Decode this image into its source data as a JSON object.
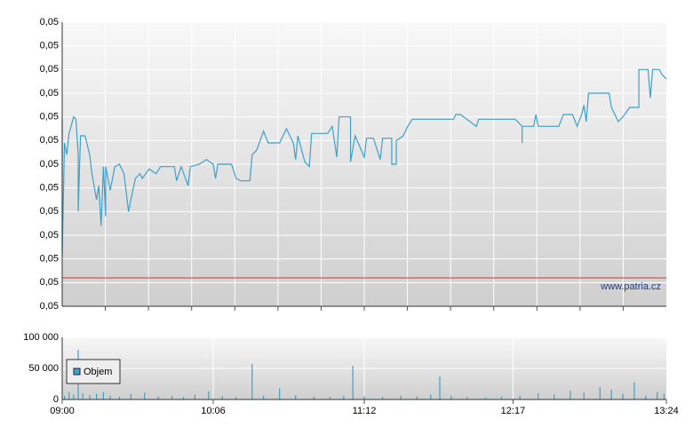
{
  "chart_data": [
    {
      "type": "line",
      "color": "#3fa0c9",
      "x": [
        "09:00",
        "09:00",
        "09:01",
        "09:02",
        "09:03",
        "09:05",
        "09:06",
        "09:07",
        "09:07",
        "09:08",
        "09:10",
        "09:12",
        "09:13",
        "09:15",
        "09:16",
        "09:17",
        "09:18",
        "09:19",
        "09:19",
        "09:21",
        "09:23",
        "09:25",
        "09:27",
        "09:29",
        "09:30",
        "09:32",
        "09:34",
        "09:35",
        "09:38",
        "09:41",
        "09:43",
        "09:49",
        "09:50",
        "09:52",
        "09:55",
        "09:56",
        "10:00",
        "10:03",
        "10:06",
        "10:07",
        "10:08",
        "10:14",
        "10:16",
        "10:18",
        "10:22",
        "10:23",
        "10:25",
        "10:28",
        "10:30",
        "10:35",
        "10:38",
        "10:41",
        "10:42",
        "10:43",
        "10:46",
        "10:48",
        "10:49",
        "10:56",
        "10:58",
        "11:00",
        "11:01",
        "11:06",
        "11:06",
        "11:08",
        "11:12",
        "11:13",
        "11:16",
        "11:19",
        "11:20",
        "11:24",
        "11:24",
        "11:26",
        "11:26",
        "11:29",
        "11:31",
        "11:33",
        "11:51",
        "11:52",
        "11:54",
        "12:01",
        "12:02",
        "12:18",
        "12:21",
        "12:21",
        "12:21",
        "12:26",
        "12:27",
        "12:28",
        "12:37",
        "12:39",
        "12:43",
        "12:45",
        "12:47",
        "12:48",
        "12:49",
        "12:50",
        "12:59",
        "13:00",
        "13:03",
        "13:05",
        "13:08",
        "13:12",
        "13:12",
        "13:16",
        "13:17",
        "13:18",
        "13:21",
        "13:22",
        "13:24"
      ],
      "values": [
        0.04959,
        0.04901,
        0.04949,
        0.04944,
        0.04953,
        0.0496,
        0.04959,
        0.04944,
        0.0492,
        0.04952,
        0.04952,
        0.04944,
        0.04936,
        0.04925,
        0.04931,
        0.04914,
        0.04939,
        0.04918,
        0.04939,
        0.04929,
        0.04939,
        0.0494,
        0.04936,
        0.0492,
        0.04925,
        0.04934,
        0.04936,
        0.04934,
        0.04938,
        0.04936,
        0.04939,
        0.04939,
        0.04933,
        0.04939,
        0.04931,
        0.04939,
        0.0494,
        0.04942,
        0.0494,
        0.04934,
        0.0494,
        0.0494,
        0.04934,
        0.04933,
        0.04933,
        0.04944,
        0.04946,
        0.04954,
        0.04949,
        0.04949,
        0.04955,
        0.04949,
        0.04942,
        0.04952,
        0.04941,
        0.04939,
        0.04953,
        0.04953,
        0.04956,
        0.04943,
        0.0496,
        0.0496,
        0.04941,
        0.04952,
        0.04943,
        0.04951,
        0.04951,
        0.04942,
        0.04951,
        0.04951,
        0.0494,
        0.0494,
        0.0495,
        0.04952,
        0.04956,
        0.04959,
        0.04959,
        0.04961,
        0.04961,
        0.04956,
        0.04959,
        0.04959,
        0.04956,
        0.04949,
        0.04956,
        0.04956,
        0.04961,
        0.04956,
        0.04956,
        0.04961,
        0.04961,
        0.04956,
        0.04961,
        0.04965,
        0.04958,
        0.0497,
        0.0497,
        0.04964,
        0.04958,
        0.0496,
        0.04964,
        0.04964,
        0.0498,
        0.0498,
        0.04968,
        0.0498,
        0.0498,
        0.04978,
        0.04976
      ],
      "xlim": [
        "09:00",
        "13:24"
      ],
      "ylim": [
        0.0488,
        0.05
      ],
      "yticks": [
        {
          "value": 0.0488,
          "label": "0,05"
        },
        {
          "value": 0.0489,
          "label": "0,05"
        },
        {
          "value": 0.049,
          "label": "0,05"
        },
        {
          "value": 0.0491,
          "label": "0,05"
        },
        {
          "value": 0.0492,
          "label": "0,05"
        },
        {
          "value": 0.0493,
          "label": "0,05"
        },
        {
          "value": 0.0494,
          "label": "0,05"
        },
        {
          "value": 0.0495,
          "label": "0,05"
        },
        {
          "value": 0.0496,
          "label": "0,05"
        },
        {
          "value": 0.0497,
          "label": "0,05"
        },
        {
          "value": 0.0498,
          "label": "0,05"
        },
        {
          "value": 0.0499,
          "label": "0,05"
        },
        {
          "value": 0.05,
          "label": "0,05"
        }
      ],
      "reference_line": {
        "value": 0.04892,
        "color": "#d03a3a"
      },
      "annotation": "www.patria.cz",
      "grid": true
    },
    {
      "type": "bar",
      "x": [
        "09:01",
        "09:03",
        "09:05",
        "09:07",
        "09:09",
        "09:12",
        "09:15",
        "09:18",
        "09:21",
        "09:25",
        "09:30",
        "09:36",
        "09:42",
        "09:48",
        "09:53",
        "09:58",
        "10:04",
        "10:10",
        "10:16",
        "10:23",
        "10:28",
        "10:35",
        "10:42",
        "10:50",
        "10:57",
        "11:03",
        "11:07",
        "11:12",
        "11:20",
        "11:28",
        "11:35",
        "11:41",
        "11:45",
        "11:50",
        "11:57",
        "12:05",
        "12:12",
        "12:20",
        "12:28",
        "12:35",
        "12:42",
        "12:48",
        "12:55",
        "13:00",
        "13:05",
        "13:10",
        "13:15",
        "13:20",
        "13:23"
      ],
      "series": [
        {
          "name": "Objem",
          "color": "#3fa0c9",
          "values": [
            6000,
            12000,
            8000,
            80000,
            10000,
            7000,
            9000,
            12000,
            6000,
            4000,
            9000,
            11000,
            5000,
            6000,
            4000,
            8000,
            13000,
            5000,
            4000,
            57000,
            6000,
            18000,
            7000,
            5000,
            4000,
            6000,
            54000,
            5000,
            4000,
            6000,
            5000,
            8000,
            37000,
            6000,
            4000,
            3000,
            5000,
            6000,
            10000,
            8000,
            14000,
            11000,
            20000,
            16000,
            9000,
            28000,
            6000,
            12000,
            9000
          ]
        }
      ],
      "xlim": [
        "09:00",
        "13:24"
      ],
      "xticks": [
        "09:00",
        "10:06",
        "11:12",
        "12:17",
        "13:24"
      ],
      "ylim": [
        0,
        100000
      ],
      "yticks": [
        0,
        {
          "value": 50000,
          "label": "50 000"
        },
        {
          "value": 100000,
          "label": "100 000"
        }
      ],
      "legend": "upper left",
      "grid": true
    }
  ]
}
